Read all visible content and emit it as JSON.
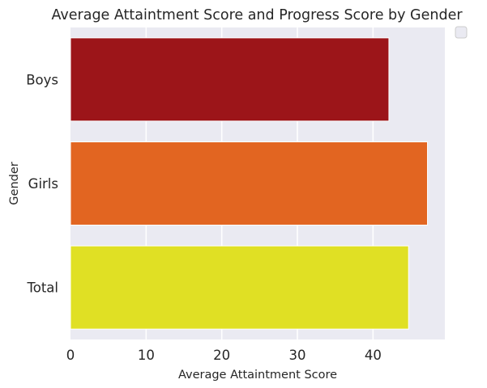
{
  "chart_data": {
    "type": "bar",
    "orientation": "horizontal",
    "title": "Average Attaintment Score and Progress Score by Gender",
    "xlabel": "Average Attaintment Score",
    "ylabel": "Gender",
    "categories": [
      "Boys",
      "Girls",
      "Total"
    ],
    "values": [
      42.1,
      47.2,
      44.7
    ],
    "colors": [
      "#9c1519",
      "#e26521",
      "#e0e024"
    ],
    "xlim": [
      0,
      49.5
    ],
    "xticks": [
      0,
      10,
      20,
      30,
      40
    ],
    "grid": true,
    "legend": "top-right, empty",
    "plot_background": "#eaeaf2"
  }
}
